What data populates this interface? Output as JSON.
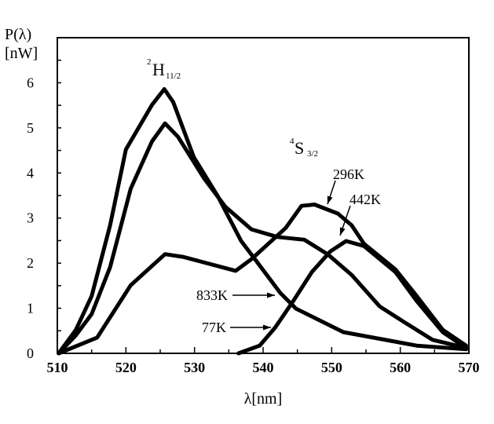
{
  "chart_data": {
    "type": "line",
    "title": "",
    "xlabel": "λ[nm]",
    "ylabel_line1": "P(λ)",
    "ylabel_line2": "[nW]",
    "xlim": [
      510,
      570
    ],
    "ylim": [
      0,
      7
    ],
    "xticks": [
      510,
      520,
      530,
      540,
      550,
      560,
      570
    ],
    "yticks": [
      0,
      1,
      2,
      3,
      4,
      5,
      6
    ],
    "grid": false,
    "line_color": "#000000",
    "annotations": {
      "band_h": {
        "main": "H",
        "pre": "2",
        "sub": "11/2"
      },
      "band_s": {
        "main": "S",
        "pre": "4",
        "sub": "3/2"
      }
    },
    "series": [
      {
        "name": "833K",
        "points": [
          [
            510.2,
            0
          ],
          [
            512.7,
            0.52
          ],
          [
            515,
            1.27
          ],
          [
            517.7,
            2.84
          ],
          [
            520,
            4.52
          ],
          [
            523.8,
            5.51
          ],
          [
            525.6,
            5.86
          ],
          [
            526.9,
            5.57
          ],
          [
            529.9,
            4.35
          ],
          [
            533.4,
            3.48
          ],
          [
            536.8,
            2.49
          ],
          [
            539.1,
            2.03
          ],
          [
            542.5,
            1.34
          ],
          [
            544.8,
            0.99
          ],
          [
            551.7,
            0.47
          ],
          [
            562.4,
            0.17
          ],
          [
            569.6,
            0.09
          ]
        ]
      },
      {
        "name": "442K",
        "points": [
          [
            510.2,
            0
          ],
          [
            512.7,
            0.4
          ],
          [
            515,
            0.87
          ],
          [
            517.7,
            1.91
          ],
          [
            520.7,
            3.65
          ],
          [
            523.8,
            4.7
          ],
          [
            525.7,
            5.1
          ],
          [
            527.6,
            4.8
          ],
          [
            531.4,
            3.88
          ],
          [
            534.5,
            3.25
          ],
          [
            538.3,
            2.75
          ],
          [
            542.1,
            2.58
          ],
          [
            546,
            2.52
          ],
          [
            549.4,
            2.2
          ],
          [
            552.9,
            1.74
          ],
          [
            557,
            1.04
          ],
          [
            560.5,
            0.7
          ],
          [
            564.7,
            0.3
          ],
          [
            569.6,
            0.12
          ]
        ]
      },
      {
        "name": "296K",
        "points": [
          [
            510.2,
            0
          ],
          [
            515.8,
            0.35
          ],
          [
            520.7,
            1.51
          ],
          [
            525.7,
            2.2
          ],
          [
            528.3,
            2.14
          ],
          [
            536,
            1.83
          ],
          [
            538.3,
            2.09
          ],
          [
            543.3,
            2.78
          ],
          [
            545.6,
            3.27
          ],
          [
            547.5,
            3.3
          ],
          [
            550.9,
            3.1
          ],
          [
            552.9,
            2.84
          ],
          [
            554.7,
            2.43
          ],
          [
            559.3,
            1.86
          ],
          [
            562.4,
            1.27
          ],
          [
            566.2,
            0.52
          ],
          [
            569.6,
            0.17
          ]
        ]
      },
      {
        "name": "77K",
        "points": [
          [
            536.4,
            0
          ],
          [
            539.5,
            0.17
          ],
          [
            541.8,
            0.58
          ],
          [
            544.4,
            1.16
          ],
          [
            547.1,
            1.8
          ],
          [
            549.8,
            2.26
          ],
          [
            552.1,
            2.49
          ],
          [
            554.7,
            2.38
          ],
          [
            559.3,
            1.8
          ],
          [
            562.4,
            1.16
          ],
          [
            566.2,
            0.47
          ],
          [
            569.6,
            0.12
          ]
        ]
      }
    ]
  }
}
